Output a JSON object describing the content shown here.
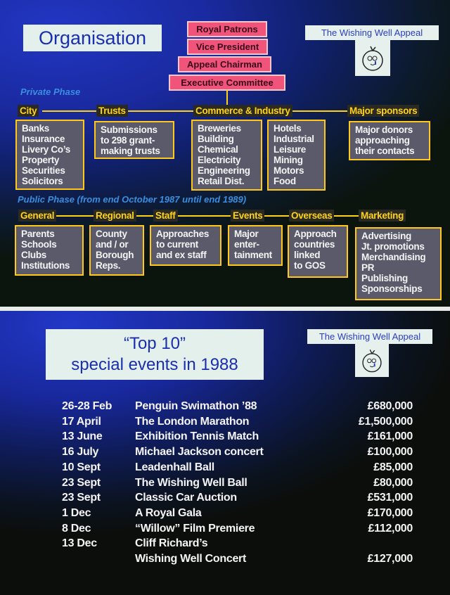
{
  "slide1": {
    "title": "Organisation",
    "hierarchy": [
      "Royal Patrons",
      "Vice President",
      "Appeal Chairman",
      "Executive Committee"
    ],
    "logo_text": "The Wishing Well Appeal",
    "private_phase": {
      "label": "Private Phase",
      "groups": [
        {
          "heading": "City",
          "items": "Banks\nInsurance\nLivery Co’s\nProperty\nSecurities\nSolicitors"
        },
        {
          "heading": "Trusts",
          "items": "Submissions\nto 298 grant-\nmaking trusts"
        },
        {
          "heading": "Commerce & Industry",
          "items": "Breweries\nBuilding\nChemical\nElectricity\nEngineering\nRetail Dist.",
          "items2": "Hotels\nIndustrial\nLeisure\nMining\nMotors\nFood"
        },
        {
          "heading": "Major sponsors",
          "items": "Major donors\napproaching\ntheir contacts"
        }
      ]
    },
    "public_phase": {
      "label": "Public Phase (from end October 1987 until end 1989)",
      "groups": [
        {
          "heading": "General",
          "items": "Parents\nSchools\nClubs\nInstitutions"
        },
        {
          "heading": "Regional",
          "items": "County\nand / or\nBorough\nReps."
        },
        {
          "heading": "Staff",
          "items": "Approaches\nto current\nand ex staff"
        },
        {
          "heading": "Events",
          "items": "Major\nenter-\ntainment"
        },
        {
          "heading": "Overseas",
          "items": "Approach\ncountries\nlinked\nto GOS"
        },
        {
          "heading": "Marketing",
          "items": "Advertising\nJt. promotions\nMerchandising\nPR\nPublishing\nSponsorships"
        }
      ]
    }
  },
  "slide2": {
    "title_line1": "“Top 10”",
    "title_line2": "special events in 1988",
    "logo_text": "The Wishing Well Appeal",
    "events": [
      {
        "date": "26-28 Feb",
        "name": "Penguin Swimathon ’88",
        "amount": "£680,000"
      },
      {
        "date": "17 April",
        "name": "The London Marathon",
        "amount": "£1,500,000"
      },
      {
        "date": "13 June",
        "name": "Exhibition Tennis Match",
        "amount": "£161,000"
      },
      {
        "date": "16 July",
        "name": "Michael Jackson concert",
        "amount": "£100,000"
      },
      {
        "date": "10 Sept",
        "name": "Leadenhall Ball",
        "amount": "£85,000"
      },
      {
        "date": "23 Sept",
        "name": "The Wishing Well Ball",
        "amount": "£80,000"
      },
      {
        "date": "23 Sept",
        "name": "Classic Car Auction",
        "amount": "£531,000"
      },
      {
        "date": "1 Dec",
        "name": "A Royal Gala",
        "amount": "£170,000"
      },
      {
        "date": "8 Dec",
        "name": "“Willow” Film Premiere",
        "amount": "£112,000"
      },
      {
        "date": "13 Dec",
        "name": "Cliff Richard’s",
        "amount": ""
      },
      {
        "date": "",
        "name": "Wishing Well Concert",
        "amount": "£127,000"
      }
    ]
  },
  "colors": {
    "heading": "#ffd21a",
    "hierarchy": "#f0547a",
    "phase": "#3a8ee0",
    "slide_blue": "#2236c4"
  }
}
